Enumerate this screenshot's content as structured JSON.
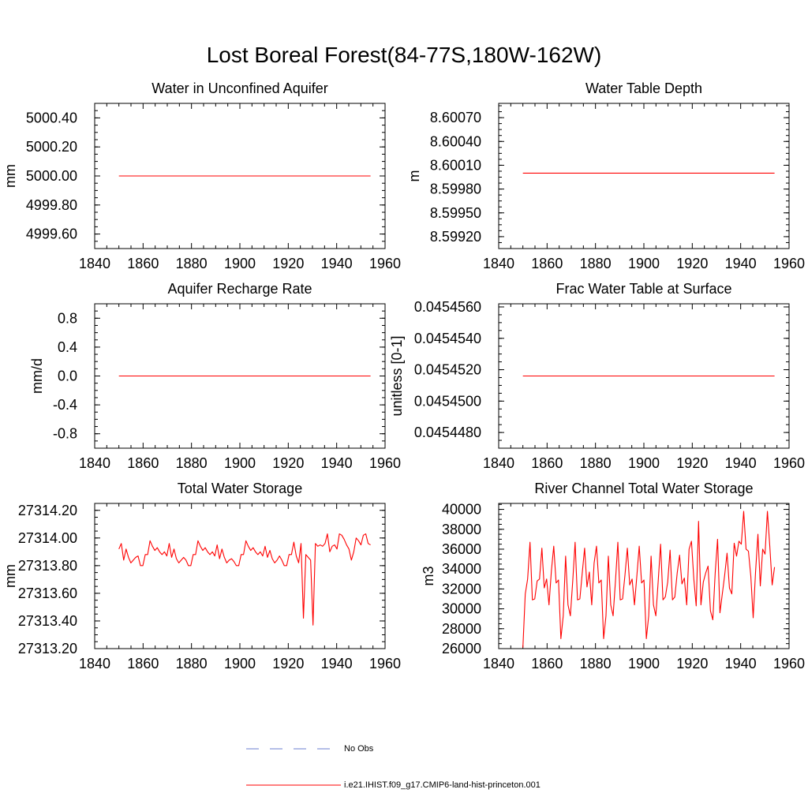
{
  "page_title": "Lost Boreal Forest(84-77S,180W-162W)",
  "legend": {
    "items": [
      {
        "label": "No Obs",
        "color": "#6a7fd0",
        "dash": true
      },
      {
        "label": "i.e21.IHIST.f09_g17.CMIP6-land-hist-princeton.001",
        "color": "#ff0000",
        "dash": false
      }
    ]
  },
  "chart_data": [
    {
      "type": "line",
      "title": "Water in Unconfined Aquifer",
      "ylabel": "mm",
      "xlim": [
        1840,
        1960
      ],
      "ylim": [
        4999.5,
        5000.5
      ],
      "xticks": [
        1840,
        1860,
        1880,
        1900,
        1920,
        1940,
        1960
      ],
      "yticks": [
        "4999.60",
        "4999.80",
        "5000.00",
        "5000.20",
        "5000.40"
      ],
      "series": [
        {
          "color": "#ff0000",
          "x_range": [
            1850,
            1954
          ],
          "values": [
            5000.0,
            5000.0
          ]
        }
      ]
    },
    {
      "type": "line",
      "title": "Water Table Depth",
      "ylabel": "m",
      "xlim": [
        1840,
        1960
      ],
      "ylim": [
        8.59905,
        8.60088
      ],
      "xticks": [
        1840,
        1860,
        1880,
        1900,
        1920,
        1940,
        1960
      ],
      "yticks": [
        "8.59920",
        "8.59950",
        "8.59980",
        "8.60010",
        "8.60040",
        "8.60070"
      ],
      "series": [
        {
          "color": "#ff0000",
          "x_range": [
            1850,
            1954
          ],
          "values": [
            8.6,
            8.6
          ]
        }
      ]
    },
    {
      "type": "line",
      "title": "Aquifer Recharge Rate",
      "ylabel": "mm/d",
      "xlim": [
        1840,
        1960
      ],
      "ylim": [
        -1.0,
        1.0
      ],
      "xticks": [
        1840,
        1860,
        1880,
        1900,
        1920,
        1940,
        1960
      ],
      "yticks": [
        "-0.8",
        "-0.4",
        "0.0",
        "0.4",
        "0.8"
      ],
      "series": [
        {
          "color": "#ff0000",
          "x_range": [
            1850,
            1954
          ],
          "values": [
            0.0,
            0.0
          ]
        }
      ]
    },
    {
      "type": "line",
      "title": "Frac Water Table at Surface",
      "ylabel": "unitless [0-1]",
      "xlim": [
        1840,
        1960
      ],
      "ylim": [
        0.045447,
        0.0454562
      ],
      "xticks": [
        1840,
        1860,
        1880,
        1900,
        1920,
        1940,
        1960
      ],
      "yticks": [
        "0.0454480",
        "0.0454500",
        "0.0454520",
        "0.0454540",
        "0.0454560"
      ],
      "series": [
        {
          "color": "#ff0000",
          "x_range": [
            1850,
            1954
          ],
          "values": [
            0.0454516,
            0.0454516
          ]
        }
      ]
    },
    {
      "type": "line",
      "title": "Total Water Storage",
      "ylabel": "mm",
      "xlim": [
        1840,
        1960
      ],
      "ylim": [
        27313.2,
        27314.25
      ],
      "xticks": [
        1840,
        1860,
        1880,
        1900,
        1920,
        1940,
        1960
      ],
      "yticks": [
        "27313.20",
        "27313.40",
        "27313.60",
        "27313.80",
        "27314.00",
        "27314.20"
      ],
      "series": [
        {
          "color": "#ff0000",
          "x_range": [
            1850,
            1954
          ],
          "values": [
            27313.92,
            27313.96,
            27313.84,
            27313.92,
            27313.86,
            27313.82,
            27313.84,
            27313.86,
            27313.87,
            27313.8,
            27313.8,
            27313.88,
            27313.88,
            27313.98,
            27313.94,
            27313.91,
            27313.93,
            27313.9,
            27313.88,
            27313.9,
            27313.87,
            27313.96,
            27313.86,
            27313.92,
            27313.85,
            27313.82,
            27313.84,
            27313.86,
            27313.84,
            27313.8,
            27313.8,
            27313.88,
            27313.88,
            27313.98,
            27313.94,
            27313.91,
            27313.93,
            27313.9,
            27313.88,
            27313.9,
            27313.87,
            27313.95,
            27313.85,
            27313.92,
            27313.86,
            27313.82,
            27313.84,
            27313.85,
            27313.83,
            27313.8,
            27313.8,
            27313.88,
            27313.88,
            27313.98,
            27313.94,
            27313.91,
            27313.93,
            27313.9,
            27313.88,
            27313.9,
            27313.87,
            27313.94,
            27313.86,
            27313.91,
            27313.85,
            27313.82,
            27313.84,
            27313.87,
            27313.84,
            27313.8,
            27313.8,
            27313.88,
            27313.88,
            27313.97,
            27313.87,
            27313.82,
            27313.96,
            27313.42,
            27313.88,
            27313.86,
            27313.84,
            27313.37,
            27313.96,
            27313.94,
            27313.95,
            27313.94,
            27313.96,
            27314.03,
            27313.9,
            27313.94,
            27313.95,
            27313.92,
            27314.03,
            27314.02,
            27313.99,
            27313.95,
            27313.92,
            27313.84,
            27313.9,
            27314.0,
            27313.98,
            27313.95,
            27314.02,
            27314.03,
            27313.96,
            27313.95
          ]
        }
      ]
    },
    {
      "type": "line",
      "title": "River Channel Total Water Storage",
      "ylabel": "m3",
      "xlim": [
        1840,
        1960
      ],
      "ylim": [
        26000,
        40600
      ],
      "xticks": [
        1840,
        1860,
        1880,
        1900,
        1920,
        1940,
        1960
      ],
      "yticks": [
        "26000",
        "28000",
        "30000",
        "32000",
        "34000",
        "36000",
        "38000",
        "40000"
      ],
      "series": [
        {
          "color": "#ff0000",
          "x_range": [
            1850,
            1954
          ],
          "values": [
            26100,
            31500,
            33000,
            36700,
            30900,
            31000,
            32800,
            33000,
            36100,
            32100,
            33000,
            30400,
            33800,
            36300,
            32600,
            32900,
            27000,
            29300,
            35300,
            30400,
            29300,
            32800,
            36700,
            30900,
            31000,
            33600,
            36100,
            32200,
            33700,
            30400,
            34600,
            36300,
            32600,
            32900,
            27000,
            29300,
            35300,
            30400,
            29300,
            32800,
            36700,
            30900,
            31000,
            33400,
            36100,
            32400,
            33000,
            30400,
            33300,
            36300,
            32600,
            32900,
            27000,
            29300,
            35300,
            30400,
            29300,
            32800,
            36500,
            30900,
            31200,
            32700,
            35900,
            30900,
            31200,
            33600,
            35400,
            32500,
            33100,
            30400,
            36000,
            36800,
            33000,
            30300,
            38800,
            30400,
            32700,
            33600,
            34300,
            29800,
            28900,
            33600,
            37000,
            29600,
            31500,
            33400,
            35600,
            32100,
            31500,
            36600,
            35300,
            36800,
            36500,
            39800,
            36000,
            35800,
            33300,
            29100,
            33700,
            37500,
            32300,
            36000,
            35500,
            39800,
            36300,
            32400,
            34200
          ]
        }
      ]
    }
  ]
}
